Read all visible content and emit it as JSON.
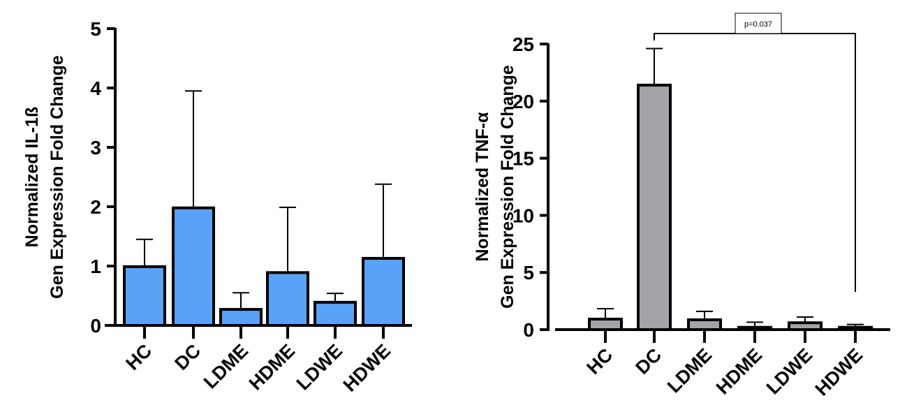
{
  "chart_data": [
    {
      "type": "bar",
      "ylabel_line1": "Normalized IL-1ß",
      "ylabel_line2": "Gen Expression Fold Change",
      "categories": [
        "HC",
        "DC",
        "LDME",
        "HDME",
        "LDWE",
        "HDWE"
      ],
      "values": [
        0.99,
        1.98,
        0.27,
        0.89,
        0.39,
        1.13
      ],
      "error_upper": [
        1.45,
        3.95,
        0.55,
        1.99,
        0.54,
        2.38
      ],
      "ylim": [
        0,
        5
      ],
      "yticks": [
        0,
        1,
        2,
        3,
        4,
        5
      ],
      "bar_color": "#5aa2f7",
      "grid": false
    },
    {
      "type": "bar",
      "ylabel_line1": "Normalized TNF-α",
      "ylabel_line2": "Gen Expression Fold Change",
      "categories": [
        "HC",
        "DC",
        "LDME",
        "HDME",
        "LDWE",
        "HDWE"
      ],
      "values": [
        0.92,
        21.4,
        0.86,
        0.2,
        0.6,
        0.2
      ],
      "error_upper": [
        1.83,
        24.6,
        1.6,
        0.65,
        1.1,
        0.45
      ],
      "ylim": [
        0,
        25
      ],
      "yticks": [
        0,
        5,
        10,
        15,
        20,
        25
      ],
      "bar_color": "#a3a3a8",
      "grid": false,
      "annotation": {
        "text": "p=0.037",
        "from": "DC",
        "to": "HDWE"
      }
    }
  ]
}
